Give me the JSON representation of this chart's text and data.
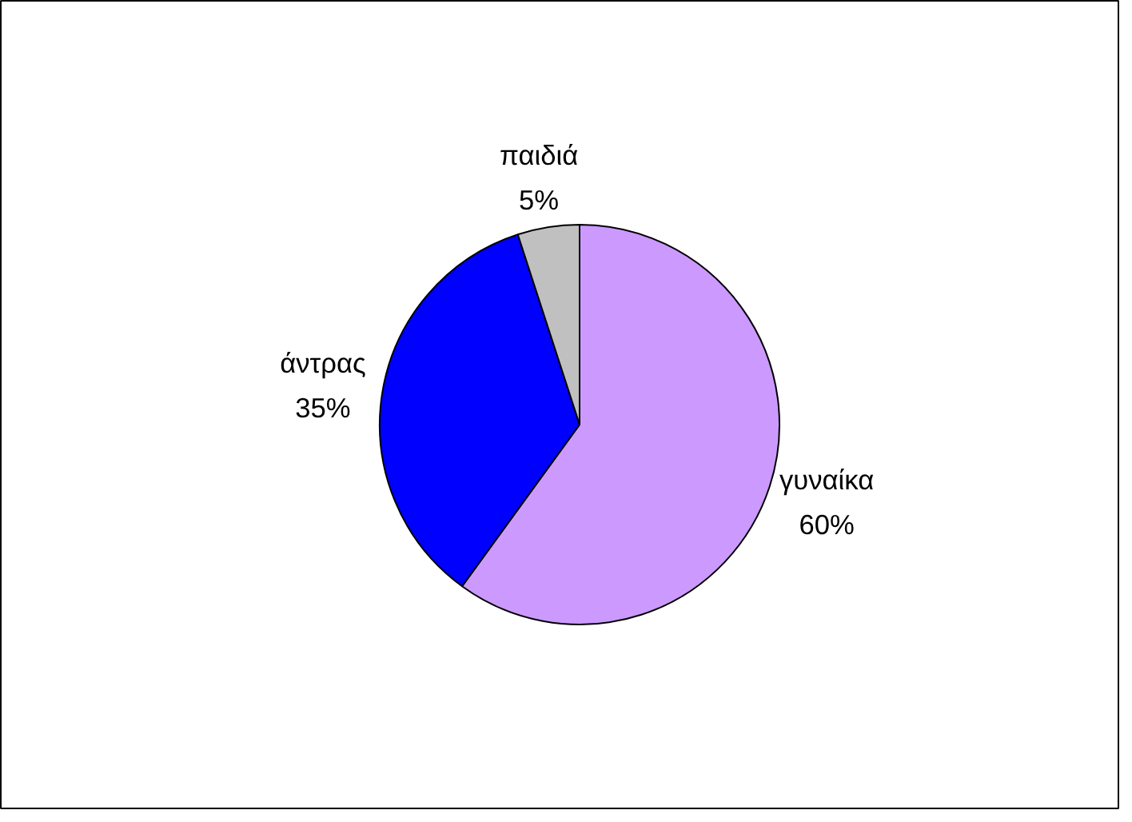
{
  "chart_data": {
    "type": "pie",
    "categories": [
      "γυναίκα",
      "άντρας",
      "παιδιά"
    ],
    "values": [
      60,
      35,
      5
    ],
    "colors": [
      "#cc99ff",
      "#0000ff",
      "#c0c0c0"
    ],
    "value_labels": [
      "60%",
      "35%",
      "5%"
    ],
    "legend": false
  }
}
